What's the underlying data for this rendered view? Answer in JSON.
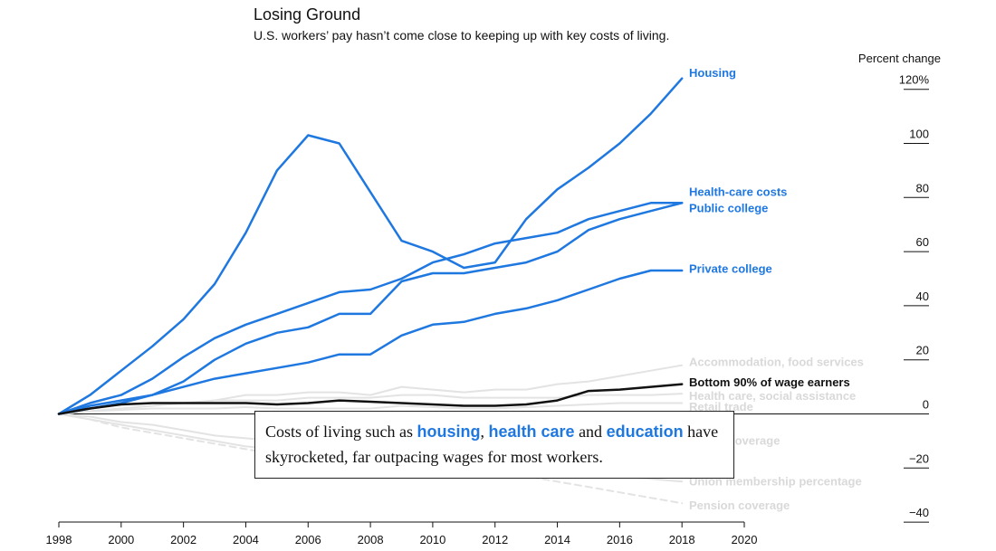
{
  "header": {
    "title": "Losing Ground",
    "subtitle": "U.S. workers’ pay hasn’t come close to keeping up with key costs of living."
  },
  "callout": {
    "t1": "Costs of living such as ",
    "h1": "housing",
    "t2": ", ",
    "h2": "health care",
    "t3": " and ",
    "h3": "education",
    "t4": " have skyrocketed, far outpacing wages for most workers."
  },
  "colors": {
    "accent": "#1f78e0",
    "wages": "#111111",
    "muted": "#d9d9d9",
    "axis": "#111111"
  },
  "chart_data": {
    "type": "line",
    "ylabel": "Percent change",
    "xlim": [
      1998,
      2020
    ],
    "ylim": [
      -40,
      120
    ],
    "x_ticks": [
      1998,
      2000,
      2002,
      2004,
      2006,
      2008,
      2010,
      2012,
      2014,
      2016,
      2018,
      2020
    ],
    "y_ticks": [
      -40,
      -20,
      0,
      20,
      40,
      60,
      80,
      100,
      120
    ],
    "y_tick_labels": [
      "−40",
      "−20",
      "0",
      "20",
      "40",
      "60",
      "80",
      "100",
      "120%"
    ],
    "grid": false,
    "x": [
      1998,
      1999,
      2000,
      2001,
      2002,
      2003,
      2004,
      2005,
      2006,
      2007,
      2008,
      2009,
      2010,
      2011,
      2012,
      2013,
      2014,
      2015,
      2016,
      2017,
      2018
    ],
    "series": [
      {
        "name": "Housing",
        "color": "#1f78e0",
        "emphasis": true,
        "values": [
          0,
          7,
          16,
          25,
          35,
          48,
          67,
          90,
          103,
          100,
          82,
          64,
          60,
          54,
          56,
          72,
          83,
          91,
          100,
          111,
          124
        ]
      },
      {
        "name": "Health-care costs",
        "color": "#1f78e0",
        "emphasis": true,
        "values": [
          0,
          4,
          7,
          13,
          21,
          28,
          33,
          37,
          41,
          45,
          46,
          50,
          56,
          59,
          63,
          65,
          67,
          72,
          75,
          78,
          78
        ]
      },
      {
        "name": "Public college",
        "color": "#1f78e0",
        "emphasis": true,
        "values": [
          0,
          3,
          5,
          7,
          12,
          20,
          26,
          30,
          32,
          37,
          37,
          49,
          52,
          52,
          54,
          56,
          60,
          68,
          72,
          75,
          78
        ]
      },
      {
        "name": "Private college",
        "color": "#1f78e0",
        "emphasis": true,
        "values": [
          0,
          2,
          4,
          7,
          10,
          13,
          15,
          17,
          19,
          22,
          22,
          29,
          33,
          34,
          37,
          39,
          42,
          46,
          50,
          53,
          53
        ]
      },
      {
        "name": "Accommodation, food services",
        "color": "#e3e3e3",
        "emphasis": false,
        "values": [
          0,
          1,
          2,
          3,
          4,
          5,
          7,
          7,
          8,
          8,
          7,
          10,
          9,
          8,
          9,
          9,
          11,
          12,
          14,
          16,
          18
        ]
      },
      {
        "name": "Bottom 90% of wage earners",
        "color": "#111111",
        "emphasis": true,
        "values": [
          0,
          2,
          3.5,
          4,
          4,
          4,
          4,
          3.5,
          4,
          5,
          4.5,
          4,
          3.5,
          3,
          3,
          3.5,
          5,
          8.5,
          9,
          10,
          11
        ]
      },
      {
        "name": "Health care, social assistance",
        "color": "#e3e3e3",
        "emphasis": false,
        "values": [
          0,
          1,
          2,
          3,
          4,
          5,
          5,
          5,
          6,
          6,
          6,
          7,
          7,
          6,
          6,
          6,
          6,
          7,
          7,
          7,
          7.5
        ]
      },
      {
        "name": "Retail trade",
        "color": "#e3e3e3",
        "emphasis": false,
        "values": [
          0,
          1,
          1.5,
          2,
          2,
          2,
          2.5,
          2,
          2,
          2,
          2,
          3,
          2.5,
          2,
          2,
          2.5,
          3,
          3.5,
          4,
          4,
          4
        ]
      },
      {
        "name": "Pension coverage",
        "color": "#e3e3e3",
        "emphasis": false,
        "values": [
          0,
          -2,
          -5,
          -7,
          -9,
          -11,
          -13,
          -15,
          -16,
          -17,
          -18,
          -19,
          -20,
          -21,
          -22,
          -23,
          -25,
          -27,
          -29,
          -31,
          -33
        ]
      },
      {
        "name": "Health coverage",
        "color": "#e3e3e3",
        "emphasis": false,
        "values": [
          0,
          -1,
          -3,
          -4,
          -6,
          -8,
          -9,
          -10,
          -11,
          -11,
          -11,
          -12,
          -12,
          -11,
          -11,
          -10,
          -10,
          -10,
          -10,
          -10,
          -10
        ]
      },
      {
        "name": "Union membership percentage",
        "color": "#e3e3e3",
        "emphasis": false,
        "values": [
          0,
          -2,
          -4,
          -6,
          -8,
          -10,
          -12,
          -13,
          -14,
          -15,
          -16,
          -17,
          -17,
          -18,
          -19,
          -20,
          -21,
          -22,
          -23,
          -24,
          -25
        ]
      }
    ],
    "series_labels": [
      {
        "name": "Housing",
        "y": 126,
        "color": "#1f78e0"
      },
      {
        "name": "Health-care costs",
        "y": 82,
        "color": "#1f78e0"
      },
      {
        "name": "Public college",
        "y": 76,
        "color": "#1f78e0"
      },
      {
        "name": "Private college",
        "y": 53.5,
        "color": "#1f78e0"
      },
      {
        "name": "Accommodation, food services",
        "y": 19,
        "color": "#d9d9d9"
      },
      {
        "name": "Bottom 90% of wage earners",
        "y": 11.5,
        "color": "#111111"
      },
      {
        "name": "Health care, social assistance",
        "y": 6.5,
        "color": "#d9d9d9"
      },
      {
        "name": "Retail trade",
        "y": 2.5,
        "color": "#d9d9d9"
      },
      {
        "name": "Health coverage",
        "y": -10,
        "color": "#d9d9d9"
      },
      {
        "name": "Union membership percentage",
        "y": -25,
        "color": "#d9d9d9"
      },
      {
        "name": "Pension coverage",
        "y": -34,
        "color": "#d9d9d9"
      }
    ]
  }
}
